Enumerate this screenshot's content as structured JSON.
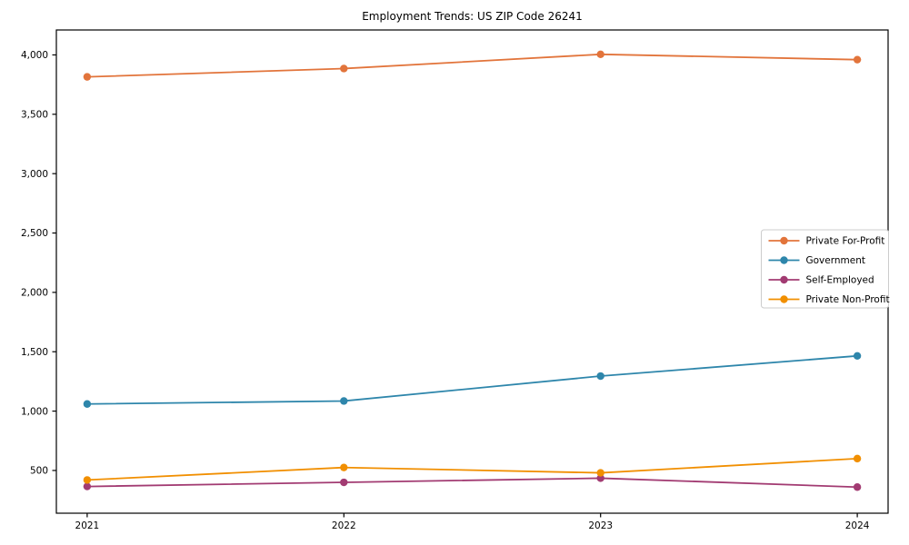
{
  "chart_data": {
    "type": "line",
    "title": "Employment Trends: US ZIP Code 26241",
    "categories": [
      "2021",
      "2022",
      "2023",
      "2024"
    ],
    "series": [
      {
        "name": "Private For-Profit",
        "color": "#E2743B",
        "values": [
          3815,
          3885,
          4005,
          3960
        ]
      },
      {
        "name": "Government",
        "color": "#2E86AB",
        "values": [
          1060,
          1085,
          1295,
          1465
        ]
      },
      {
        "name": "Self-Employed",
        "color": "#A23B72",
        "values": [
          365,
          400,
          435,
          360
        ]
      },
      {
        "name": "Private Non-Profit",
        "color": "#F18F01",
        "values": [
          420,
          525,
          480,
          600
        ]
      }
    ],
    "xlabel": "",
    "ylabel": "",
    "xlim": [
      -0.12,
      3.12
    ],
    "ylim": [
      140,
      4210
    ],
    "yticks": [
      500,
      1000,
      1500,
      2000,
      2500,
      3000,
      3500,
      4000
    ],
    "ytick_labels": [
      "500",
      "1,000",
      "1,500",
      "2,000",
      "2,500",
      "3,000",
      "3,500",
      "4,000"
    ],
    "grid": false,
    "legend_position": "center-right",
    "marker": "circle",
    "colors": {
      "axis": "#000000",
      "text": "#000000",
      "background": "#ffffff",
      "legend_border": "#cccccc",
      "legend_background": "#ffffff"
    }
  }
}
